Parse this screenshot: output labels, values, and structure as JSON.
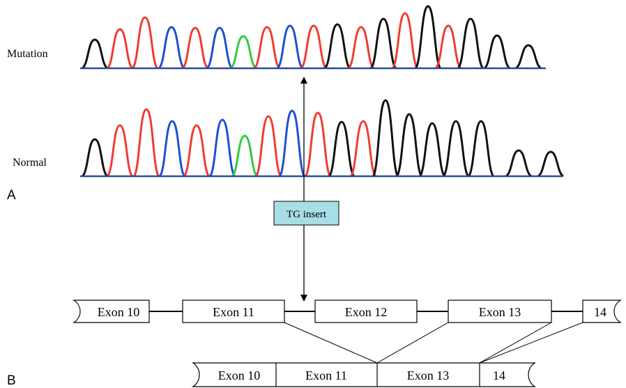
{
  "labels": {
    "mutation": "Mutation",
    "normal": "Normal",
    "panel_a": "A",
    "panel_b": "B",
    "insert": "TG insert"
  },
  "gene_exons": [
    "Exon 10",
    "Exon 11",
    "Exon 12",
    "Exon 13",
    "14"
  ],
  "transcript_exons": [
    "Exon 10",
    "Exon 11",
    "Exon 13",
    "14"
  ],
  "chromatogram": {
    "base_colors": {
      "A": "#2ecc40",
      "C": "#1f4fd1",
      "G": "#111111",
      "T": "#f03c30"
    },
    "baseline_color": "#2f4a8f",
    "mutation_bases": [
      "G",
      "T",
      "T",
      "C",
      "T",
      "C",
      "A",
      "T",
      "C",
      "T",
      "G",
      "T",
      "G",
      "T",
      "G",
      "T",
      "G",
      "G",
      "G"
    ],
    "normal_bases": [
      "G",
      "T",
      "T",
      "C",
      "T",
      "C",
      "A",
      "T",
      "C",
      "T",
      "G",
      "T",
      "G",
      "G",
      "G",
      "G",
      "G",
      "G",
      "G"
    ]
  },
  "colors": {
    "insert_box_fill": "#a8dde6",
    "line": "#000000"
  }
}
